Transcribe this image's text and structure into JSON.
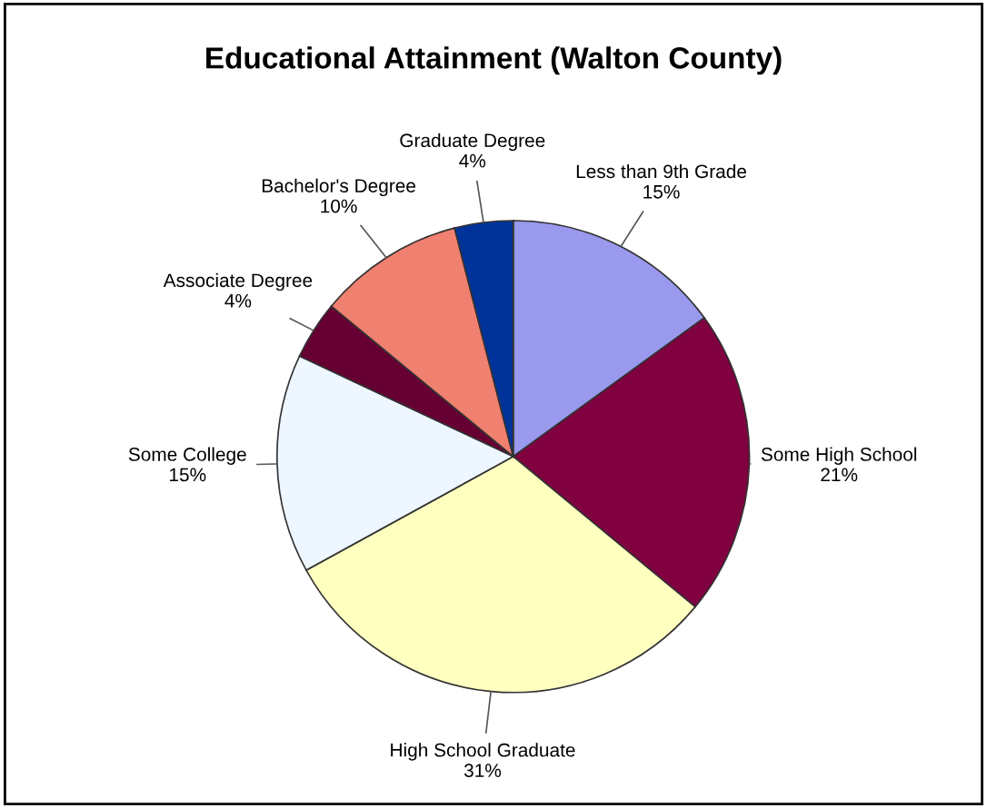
{
  "chart_data": {
    "type": "pie",
    "title": "Educational Attainment (Walton County)",
    "categories": [
      "Less than 9th Grade",
      "Some High School",
      "High School Graduate",
      "Some College",
      "Associate Degree",
      "Bachelor's Degree",
      "Graduate Degree"
    ],
    "values": [
      15,
      21,
      31,
      15,
      4,
      10,
      4
    ],
    "value_labels": [
      "15%",
      "21%",
      "31%",
      "15%",
      "4%",
      "10%",
      "4%"
    ],
    "colors": [
      "#9999ee",
      "#800040",
      "#ffffc0",
      "#eef6ff",
      "#660033",
      "#f08070",
      "#003399"
    ]
  }
}
